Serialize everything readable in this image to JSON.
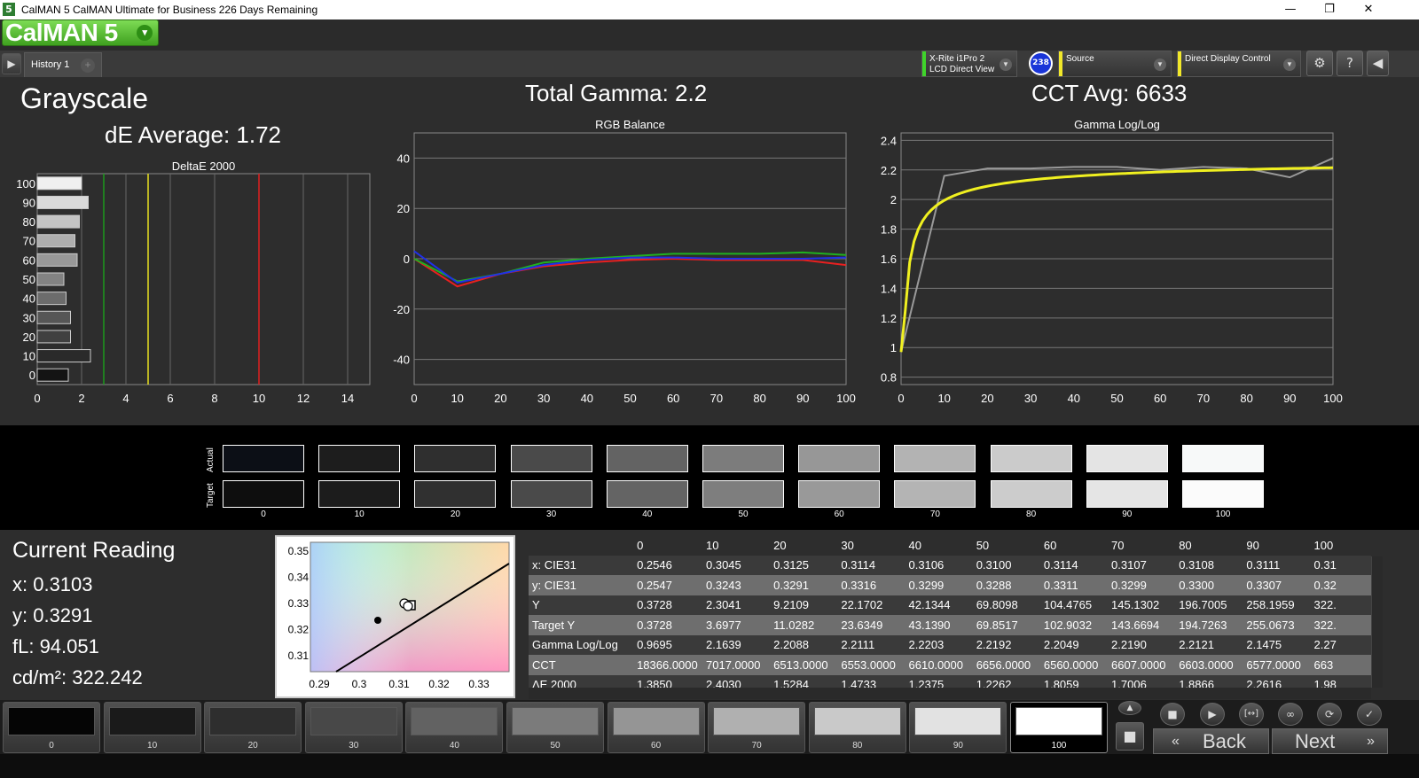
{
  "window": {
    "title": "CalMAN 5 CalMAN Ultimate for Business 226 Days Remaining",
    "logo_char": "5",
    "minimize": "—",
    "maximize": "❐",
    "close": "✕"
  },
  "brand": {
    "name": "CalMAN 5",
    "dropdown": "▾"
  },
  "tabs": {
    "history_label": "History 1",
    "add": "+"
  },
  "devices": [
    {
      "line1": "X-Rite i1Pro 2",
      "line2": "LCD Direct View",
      "color": "#3fd52a"
    },
    {
      "line1": "Source",
      "line2": "",
      "color": "#f2e82a"
    },
    {
      "line1": "Direct Display Control",
      "line2": "",
      "color": "#f2e82a"
    }
  ],
  "badge": "238",
  "toolbar_icons": [
    "gear-icon",
    "help-icon",
    "collapse-icon"
  ],
  "header": {
    "grayscale": "Grayscale",
    "de_average": "dE Average: 1.72",
    "total_gamma": "Total Gamma: 2.2",
    "cct_avg": "CCT Avg: 6633"
  },
  "charts_titles": {
    "deltae": "DeltaE 2000",
    "rgb": "RGB Balance",
    "gamma": "Gamma Log/Log"
  },
  "chart_data": [
    {
      "type": "bar",
      "title": "DeltaE 2000",
      "orientation": "horizontal",
      "categories": [
        "0",
        "10",
        "20",
        "30",
        "40",
        "50",
        "60",
        "70",
        "80",
        "90",
        "100"
      ],
      "values": [
        1.4,
        2.4,
        1.5,
        1.5,
        1.3,
        1.2,
        1.8,
        1.7,
        1.9,
        2.3,
        2.0
      ],
      "xlim": [
        0,
        15
      ],
      "xticks": [
        "0",
        "2",
        "4",
        "6",
        "8",
        "10",
        "12",
        "14"
      ],
      "thresholds": [
        {
          "value": 3,
          "color": "#1c9a1c"
        },
        {
          "value": 5,
          "color": "#e8e020"
        },
        {
          "value": 10,
          "color": "#e02020"
        }
      ]
    },
    {
      "type": "line",
      "title": "RGB Balance",
      "x": [
        0,
        10,
        20,
        30,
        40,
        50,
        60,
        70,
        80,
        90,
        100
      ],
      "ylim": [
        -50,
        50
      ],
      "yticks": [
        "40",
        "20",
        "0",
        "-20",
        "-40"
      ],
      "xticks": [
        "0",
        "10",
        "20",
        "30",
        "40",
        "50",
        "60",
        "70",
        "80",
        "90",
        "100"
      ],
      "series": [
        {
          "color": "#e82020",
          "values": [
            0,
            -11,
            -6,
            -3,
            -1.5,
            -0.5,
            0,
            -0.5,
            -0.5,
            -0.5,
            -2.5
          ]
        },
        {
          "color": "#20b020",
          "values": [
            0,
            -9,
            -6,
            -1.5,
            0,
            1,
            2,
            2,
            2,
            2.5,
            1.5
          ]
        },
        {
          "color": "#2030e8",
          "values": [
            3,
            -9.5,
            -6,
            -2.5,
            -0.5,
            0.5,
            0.5,
            0,
            0,
            0,
            0.5
          ]
        }
      ]
    },
    {
      "type": "line",
      "title": "Gamma Log/Log",
      "x": [
        0,
        10,
        20,
        30,
        40,
        50,
        60,
        70,
        80,
        90,
        100
      ],
      "ylim": [
        0.75,
        2.45
      ],
      "yticks": [
        "2.4",
        "2.2",
        "2",
        "1.8",
        "1.6",
        "1.4",
        "1.2",
        "1",
        "0.8"
      ],
      "xticks": [
        "0",
        "10",
        "20",
        "30",
        "40",
        "50",
        "60",
        "70",
        "80",
        "90",
        "100"
      ],
      "series": [
        {
          "color": "#9a9a9a",
          "values": [
            0.97,
            2.16,
            2.21,
            2.21,
            2.22,
            2.22,
            2.2,
            2.22,
            2.21,
            2.15,
            2.28
          ]
        },
        {
          "color": "#f0f020",
          "values": "target curve 2.2 approaching 2.28"
        }
      ]
    }
  ],
  "swatches": {
    "actual_label": "Actual",
    "target_label": "Target",
    "levels": [
      "0",
      "10",
      "20",
      "30",
      "40",
      "50",
      "60",
      "70",
      "80",
      "90",
      "100"
    ],
    "actual_colors": [
      "#0c0f16",
      "#1d1d1d",
      "#2f2f2f",
      "#4a4a4a",
      "#636363",
      "#7c7c7c",
      "#979797",
      "#b3b3b3",
      "#cbcbcb",
      "#e4e4e4",
      "#f7f9f9"
    ],
    "target_colors": [
      "#0e0e0e",
      "#1c1c1c",
      "#303030",
      "#4a4a4a",
      "#646464",
      "#7e7e7e",
      "#999999",
      "#b4b4b4",
      "#cccccc",
      "#e5e5e5",
      "#fbfbfb"
    ]
  },
  "current_reading": {
    "title": "Current Reading",
    "x": "x: 0.3103",
    "y": "y: 0.3291",
    "fl": "fL: 94.051",
    "cdm": "cd/m²: 322.242"
  },
  "cie": {
    "yticks": [
      "0.35",
      "0.34",
      "0.33",
      "0.32",
      "0.31"
    ],
    "xticks": [
      "0.29",
      "0.3",
      "0.31",
      "0.32",
      "0.33"
    ]
  },
  "table": {
    "headers": [
      "",
      "0",
      "10",
      "20",
      "30",
      "40",
      "50",
      "60",
      "70",
      "80",
      "90",
      "100"
    ],
    "rows": [
      {
        "label": "x: CIE31",
        "values": [
          "0.2546",
          "0.3045",
          "0.3125",
          "0.3114",
          "0.3106",
          "0.3100",
          "0.3114",
          "0.3107",
          "0.3108",
          "0.3111",
          "0.31"
        ]
      },
      {
        "label": "y: CIE31",
        "values": [
          "0.2547",
          "0.3243",
          "0.3291",
          "0.3316",
          "0.3299",
          "0.3288",
          "0.3311",
          "0.3299",
          "0.3300",
          "0.3307",
          "0.32"
        ]
      },
      {
        "label": "Y",
        "values": [
          "0.3728",
          "2.3041",
          "9.2109",
          "22.1702",
          "42.1344",
          "69.8098",
          "104.4765",
          "145.1302",
          "196.7005",
          "258.1959",
          "322."
        ]
      },
      {
        "label": "Target Y",
        "values": [
          "0.3728",
          "3.6977",
          "11.0282",
          "23.6349",
          "43.1390",
          "69.8517",
          "102.9032",
          "143.6694",
          "194.7263",
          "255.0673",
          "322."
        ]
      },
      {
        "label": "Gamma Log/Log",
        "values": [
          "0.9695",
          "2.1639",
          "2.2088",
          "2.2111",
          "2.2203",
          "2.2192",
          "2.2049",
          "2.2190",
          "2.2121",
          "2.1475",
          "2.27"
        ]
      },
      {
        "label": "CCT",
        "values": [
          "18366.0000",
          "7017.0000",
          "6513.0000",
          "6553.0000",
          "6610.0000",
          "6656.0000",
          "6560.0000",
          "6607.0000",
          "6603.0000",
          "6577.0000",
          "663"
        ]
      },
      {
        "label": "ΔE 2000",
        "values": [
          "1.3850",
          "2.4030",
          "1.5284",
          "1.4733",
          "1.2375",
          "1.2262",
          "1.8059",
          "1.7006",
          "1.8866",
          "2.2616",
          "1.98"
        ]
      }
    ]
  },
  "patches": [
    {
      "label": "0",
      "color": "#050505"
    },
    {
      "label": "10",
      "color": "#1a1a1a"
    },
    {
      "label": "20",
      "color": "#2e2e2e"
    },
    {
      "label": "30",
      "color": "#484848"
    },
    {
      "label": "40",
      "color": "#626262"
    },
    {
      "label": "50",
      "color": "#7b7b7b"
    },
    {
      "label": "60",
      "color": "#959595"
    },
    {
      "label": "70",
      "color": "#b0b0b0"
    },
    {
      "label": "80",
      "color": "#c9c9c9"
    },
    {
      "label": "90",
      "color": "#e2e2e2"
    },
    {
      "label": "100",
      "color": "#ffffff"
    }
  ],
  "controls": {
    "back": "Back",
    "next": "Next",
    "stop": "■",
    "play": "▶",
    "range": "[↔]",
    "loop": "∞",
    "refresh": "⟳",
    "check": "✓",
    "up": "▲"
  }
}
